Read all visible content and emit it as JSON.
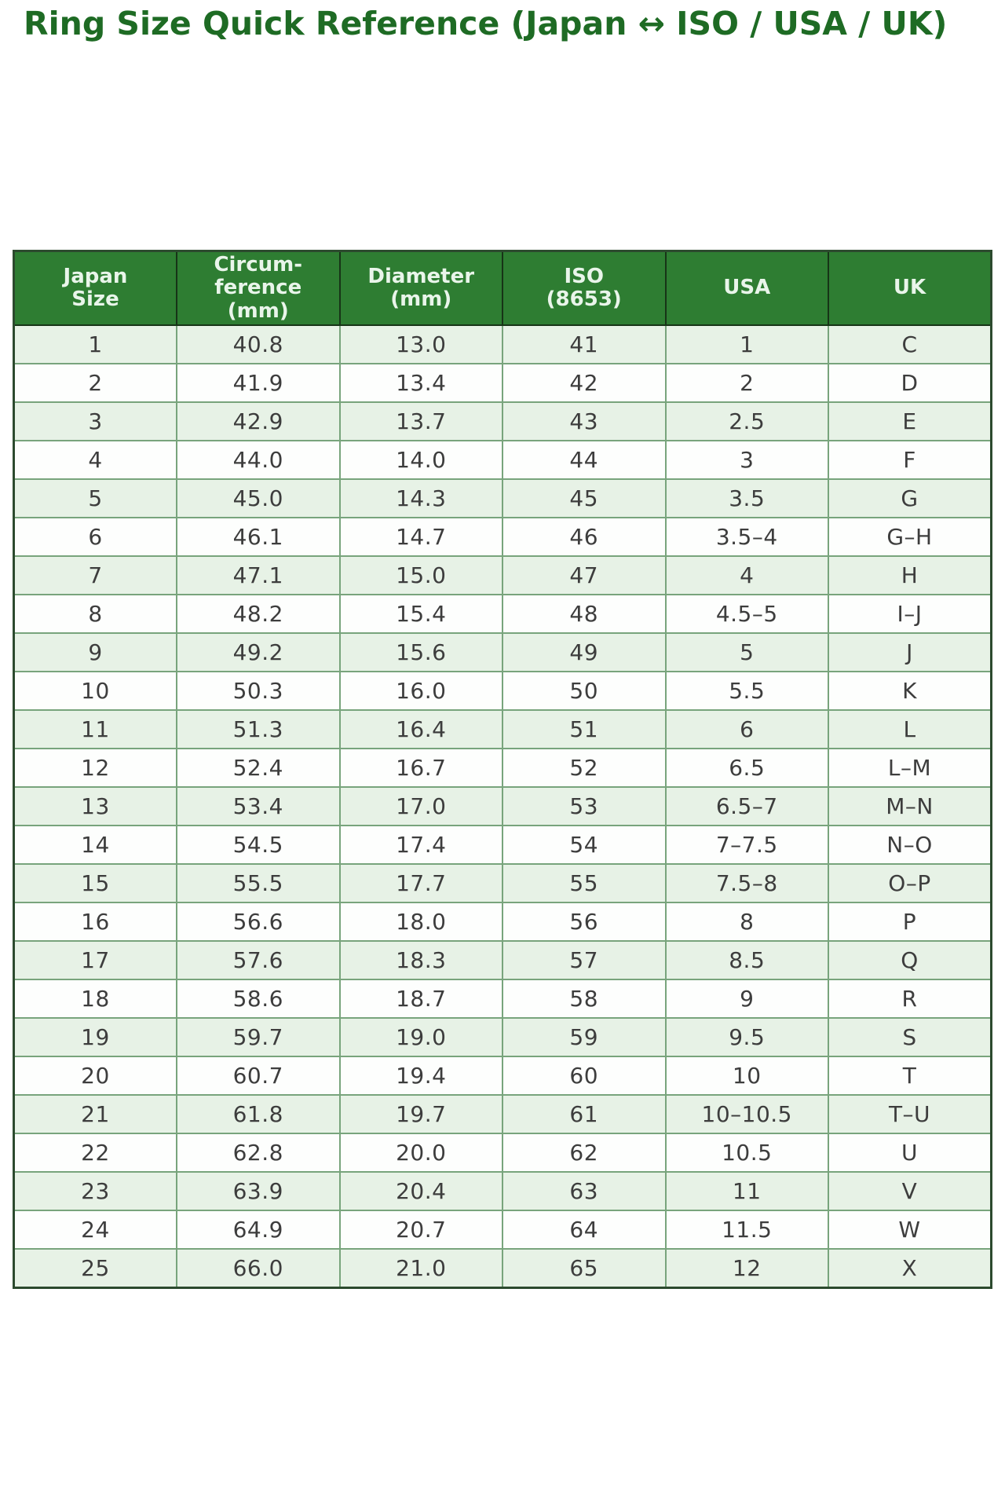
{
  "title": "Ring Size Quick Reference (Japan ↔ ISO / USA / UK)",
  "colors": {
    "title_text": "#1e6b24",
    "header_bg": "#2e7d32",
    "header_text": "#e9f5ea",
    "row_odd_bg": "#e7f2e6",
    "row_even_bg": "#fdfefd",
    "cell_text": "#3d3d3d",
    "grid_border": "#78a47c",
    "outer_border": "#2c4a2e"
  },
  "chart_data": {
    "type": "table",
    "title": "Ring Size Quick Reference (Japan ↔ ISO / USA / UK)",
    "legend_position": "none",
    "grid": true,
    "columns": [
      "Japan\nSize",
      "Circum-\nference\n(mm)",
      "Diameter\n(mm)",
      "ISO\n(8653)",
      "USA",
      "UK"
    ],
    "rows": [
      [
        "1",
        "40.8",
        "13.0",
        "41",
        "1",
        "C"
      ],
      [
        "2",
        "41.9",
        "13.4",
        "42",
        "2",
        "D"
      ],
      [
        "3",
        "42.9",
        "13.7",
        "43",
        "2.5",
        "E"
      ],
      [
        "4",
        "44.0",
        "14.0",
        "44",
        "3",
        "F"
      ],
      [
        "5",
        "45.0",
        "14.3",
        "45",
        "3.5",
        "G"
      ],
      [
        "6",
        "46.1",
        "14.7",
        "46",
        "3.5–4",
        "G–H"
      ],
      [
        "7",
        "47.1",
        "15.0",
        "47",
        "4",
        "H"
      ],
      [
        "8",
        "48.2",
        "15.4",
        "48",
        "4.5–5",
        "I–J"
      ],
      [
        "9",
        "49.2",
        "15.6",
        "49",
        "5",
        "J"
      ],
      [
        "10",
        "50.3",
        "16.0",
        "50",
        "5.5",
        "K"
      ],
      [
        "11",
        "51.3",
        "16.4",
        "51",
        "6",
        "L"
      ],
      [
        "12",
        "52.4",
        "16.7",
        "52",
        "6.5",
        "L–M"
      ],
      [
        "13",
        "53.4",
        "17.0",
        "53",
        "6.5–7",
        "M–N"
      ],
      [
        "14",
        "54.5",
        "17.4",
        "54",
        "7–7.5",
        "N–O"
      ],
      [
        "15",
        "55.5",
        "17.7",
        "55",
        "7.5–8",
        "O–P"
      ],
      [
        "16",
        "56.6",
        "18.0",
        "56",
        "8",
        "P"
      ],
      [
        "17",
        "57.6",
        "18.3",
        "57",
        "8.5",
        "Q"
      ],
      [
        "18",
        "58.6",
        "18.7",
        "58",
        "9",
        "R"
      ],
      [
        "19",
        "59.7",
        "19.0",
        "59",
        "9.5",
        "S"
      ],
      [
        "20",
        "60.7",
        "19.4",
        "60",
        "10",
        "T"
      ],
      [
        "21",
        "61.8",
        "19.7",
        "61",
        "10–10.5",
        "T–U"
      ],
      [
        "22",
        "62.8",
        "20.0",
        "62",
        "10.5",
        "U"
      ],
      [
        "23",
        "63.9",
        "20.4",
        "63",
        "11",
        "V"
      ],
      [
        "24",
        "64.9",
        "20.7",
        "64",
        "11.5",
        "W"
      ],
      [
        "25",
        "66.0",
        "21.0",
        "65",
        "12",
        "X"
      ]
    ]
  }
}
